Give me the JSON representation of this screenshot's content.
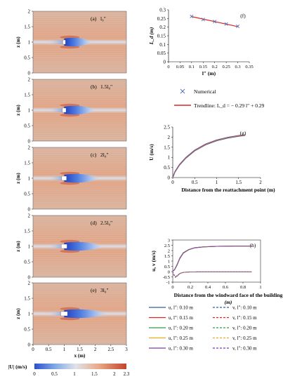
{
  "panel_labels": [
    "(a)",
    "(b)",
    "(c)",
    "(d)",
    "(e)",
    "(f)",
    "(g)",
    "(h)"
  ],
  "contour": {
    "panels": [
      {
        "label": "(a)",
        "text": "l₀″"
      },
      {
        "label": "(b)",
        "text": "1.5l₀″"
      },
      {
        "label": "(c)",
        "text": "2l₀″"
      },
      {
        "label": "(d)",
        "text": "2.5l₀″"
      },
      {
        "label": "(e)",
        "text": "3l₀″"
      }
    ],
    "x_ticks": [
      "0",
      "0.5",
      "1",
      "1.5",
      "2",
      "2.5",
      "3"
    ],
    "z_ticks": [
      "0",
      "0.5",
      "1",
      "1.5",
      "2"
    ],
    "xlabel": "x (m)",
    "zlabel": "z (m)",
    "colorbar": {
      "label": "|U| (m/s)",
      "ticks": [
        "0",
        "0.5",
        "1",
        "1.5",
        "2",
        "2.3"
      ],
      "colors": [
        "#2b4fd0",
        "#7fa8e6",
        "#dfe3ea",
        "#e8a987",
        "#c2442c"
      ]
    }
  },
  "chart_data": [
    {
      "type": "scatter",
      "panel": "(f)",
      "x": [
        0.1,
        0.15,
        0.2,
        0.25,
        0.3
      ],
      "y": [
        0.262,
        0.244,
        0.232,
        0.218,
        0.205
      ],
      "xlim": [
        0,
        0.35
      ],
      "ylim": [
        0,
        0.3
      ],
      "xticks": [
        "0",
        "0.05",
        "0.1",
        "0.15",
        "0.2",
        "0.25",
        "0.3",
        "0.35"
      ],
      "yticks": [
        "0",
        "0.05",
        "0.1",
        "0.15",
        "0.2",
        "0.25",
        "0.3"
      ],
      "xlabel": "l″ (m)",
      "ylabel": "L_d (m)",
      "trendline": {
        "slope": -0.29,
        "intercept": 0.29,
        "x_range": [
          0.1,
          0.3
        ]
      },
      "legend": {
        "marker_label": "Numerical",
        "line_label": "Trendline: L_d = − 0.29 l″ + 0.29"
      },
      "colors": {
        "marker": "#4a6fb5",
        "trendline": "#d42a2a"
      }
    },
    {
      "type": "line",
      "panel": "(g)",
      "xlabel": "Distance from the reattachment point  (m)",
      "ylabel": "U (m/s)",
      "xlim": [
        0,
        2
      ],
      "ylim": [
        0,
        2.5
      ],
      "xticks": [
        "0",
        "0.5",
        "1",
        "1.5",
        "2"
      ],
      "yticks": [
        "0",
        "0.5",
        "1",
        "1.5",
        "2",
        "2.5"
      ],
      "series": [
        {
          "x": [
            0,
            0.05,
            0.15,
            0.3,
            0.5,
            0.75,
            1.0,
            1.25,
            1.5,
            1.65
          ],
          "values": [
            0.0,
            0.28,
            0.62,
            0.98,
            1.34,
            1.64,
            1.84,
            1.97,
            2.06,
            2.1
          ]
        }
      ]
    },
    {
      "type": "line",
      "panel": "(h)",
      "xlabel": "Distance from the windward face of the building",
      "xlabel_line2": "(m)",
      "ylabel": "u, v  (m/s)",
      "xlim": [
        0,
        1
      ],
      "ylim": [
        -1,
        3
      ],
      "xticks": [
        "0",
        "0.2",
        "0.4",
        "0.6",
        "0.8",
        "1"
      ],
      "yticks": [
        "-1",
        "-0.5",
        "0",
        "0.5",
        "1",
        "1.5",
        "2",
        "2.5",
        "3"
      ],
      "series": [
        {
          "name": "u, l″: 0.10  m",
          "color": "#2b5fb5",
          "dash": false,
          "x": [
            0,
            0.02,
            0.05,
            0.08,
            0.12,
            0.18,
            0.25,
            0.35,
            0.5,
            0.7,
            0.9
          ],
          "values": [
            0.05,
            0.2,
            0.7,
            1.3,
            1.8,
            2.1,
            2.28,
            2.36,
            2.4,
            2.42,
            2.42
          ]
        },
        {
          "name": "u, l″: 0.15  m",
          "color": "#d12a2a",
          "dash": false,
          "x": [
            0,
            0.02,
            0.05,
            0.08,
            0.12,
            0.18,
            0.25,
            0.35,
            0.5,
            0.7,
            0.9
          ],
          "values": [
            0.04,
            0.18,
            0.68,
            1.28,
            1.78,
            2.09,
            2.27,
            2.35,
            2.4,
            2.42,
            2.42
          ]
        },
        {
          "name": "u, l″: 0.20  m",
          "color": "#2e9e4a",
          "dash": false,
          "x": [
            0,
            0.02,
            0.05,
            0.08,
            0.12,
            0.18,
            0.25,
            0.35,
            0.5,
            0.7,
            0.9
          ],
          "values": [
            0.04,
            0.17,
            0.66,
            1.26,
            1.77,
            2.08,
            2.26,
            2.35,
            2.4,
            2.42,
            2.42
          ]
        },
        {
          "name": "u, l″: 0.25  m",
          "color": "#f2a81d",
          "dash": false,
          "x": [
            0,
            0.02,
            0.05,
            0.08,
            0.12,
            0.18,
            0.25,
            0.35,
            0.5,
            0.7,
            0.9
          ],
          "values": [
            0.03,
            0.16,
            0.64,
            1.24,
            1.75,
            2.07,
            2.26,
            2.35,
            2.4,
            2.42,
            2.42
          ]
        },
        {
          "name": "u, l″: 0.30  m",
          "color": "#7a3fa8",
          "dash": false,
          "x": [
            0,
            0.02,
            0.05,
            0.08,
            0.12,
            0.18,
            0.25,
            0.35,
            0.5,
            0.7,
            0.9
          ],
          "values": [
            0.03,
            0.15,
            0.62,
            1.22,
            1.74,
            2.06,
            2.25,
            2.34,
            2.4,
            2.42,
            2.42
          ]
        },
        {
          "name": "v, l″: 0.10  m",
          "color": "#2b5fb5",
          "dash": true,
          "x": [
            0,
            0.01,
            0.03,
            0.05,
            0.08,
            0.12,
            0.2,
            0.35,
            0.5,
            0.7,
            0.9
          ],
          "values": [
            0.0,
            -0.3,
            -0.55,
            -0.45,
            -0.2,
            -0.08,
            -0.03,
            -0.02,
            -0.02,
            -0.02,
            -0.02
          ]
        },
        {
          "name": "v, l″: 0.15  m",
          "color": "#d12a2a",
          "dash": true,
          "x": [
            0,
            0.01,
            0.03,
            0.05,
            0.08,
            0.12,
            0.2,
            0.35,
            0.5,
            0.7,
            0.9
          ],
          "values": [
            0.0,
            -0.28,
            -0.52,
            -0.43,
            -0.19,
            -0.08,
            -0.03,
            -0.02,
            -0.02,
            -0.02,
            -0.02
          ]
        },
        {
          "name": "v, l″: 0.20  m",
          "color": "#2e9e4a",
          "dash": true,
          "x": [
            0,
            0.01,
            0.03,
            0.05,
            0.08,
            0.12,
            0.2,
            0.35,
            0.5,
            0.7,
            0.9
          ],
          "values": [
            0.0,
            -0.26,
            -0.5,
            -0.41,
            -0.18,
            -0.07,
            -0.03,
            -0.02,
            -0.02,
            -0.02,
            -0.02
          ]
        },
        {
          "name": "v, l″: 0.25  m",
          "color": "#f2a81d",
          "dash": true,
          "x": [
            0,
            0.01,
            0.03,
            0.05,
            0.08,
            0.12,
            0.2,
            0.35,
            0.5,
            0.7,
            0.9
          ],
          "values": [
            0.0,
            -0.25,
            -0.48,
            -0.4,
            -0.18,
            -0.07,
            -0.03,
            -0.02,
            -0.02,
            -0.02,
            -0.02
          ]
        },
        {
          "name": "v, l″: 0.30  m",
          "color": "#7a3fa8",
          "dash": true,
          "x": [
            0,
            0.01,
            0.03,
            0.05,
            0.08,
            0.12,
            0.2,
            0.35,
            0.5,
            0.7,
            0.9
          ],
          "values": [
            0.0,
            -0.24,
            -0.46,
            -0.38,
            -0.17,
            -0.07,
            -0.03,
            -0.02,
            -0.02,
            -0.02,
            -0.02
          ]
        }
      ]
    }
  ]
}
